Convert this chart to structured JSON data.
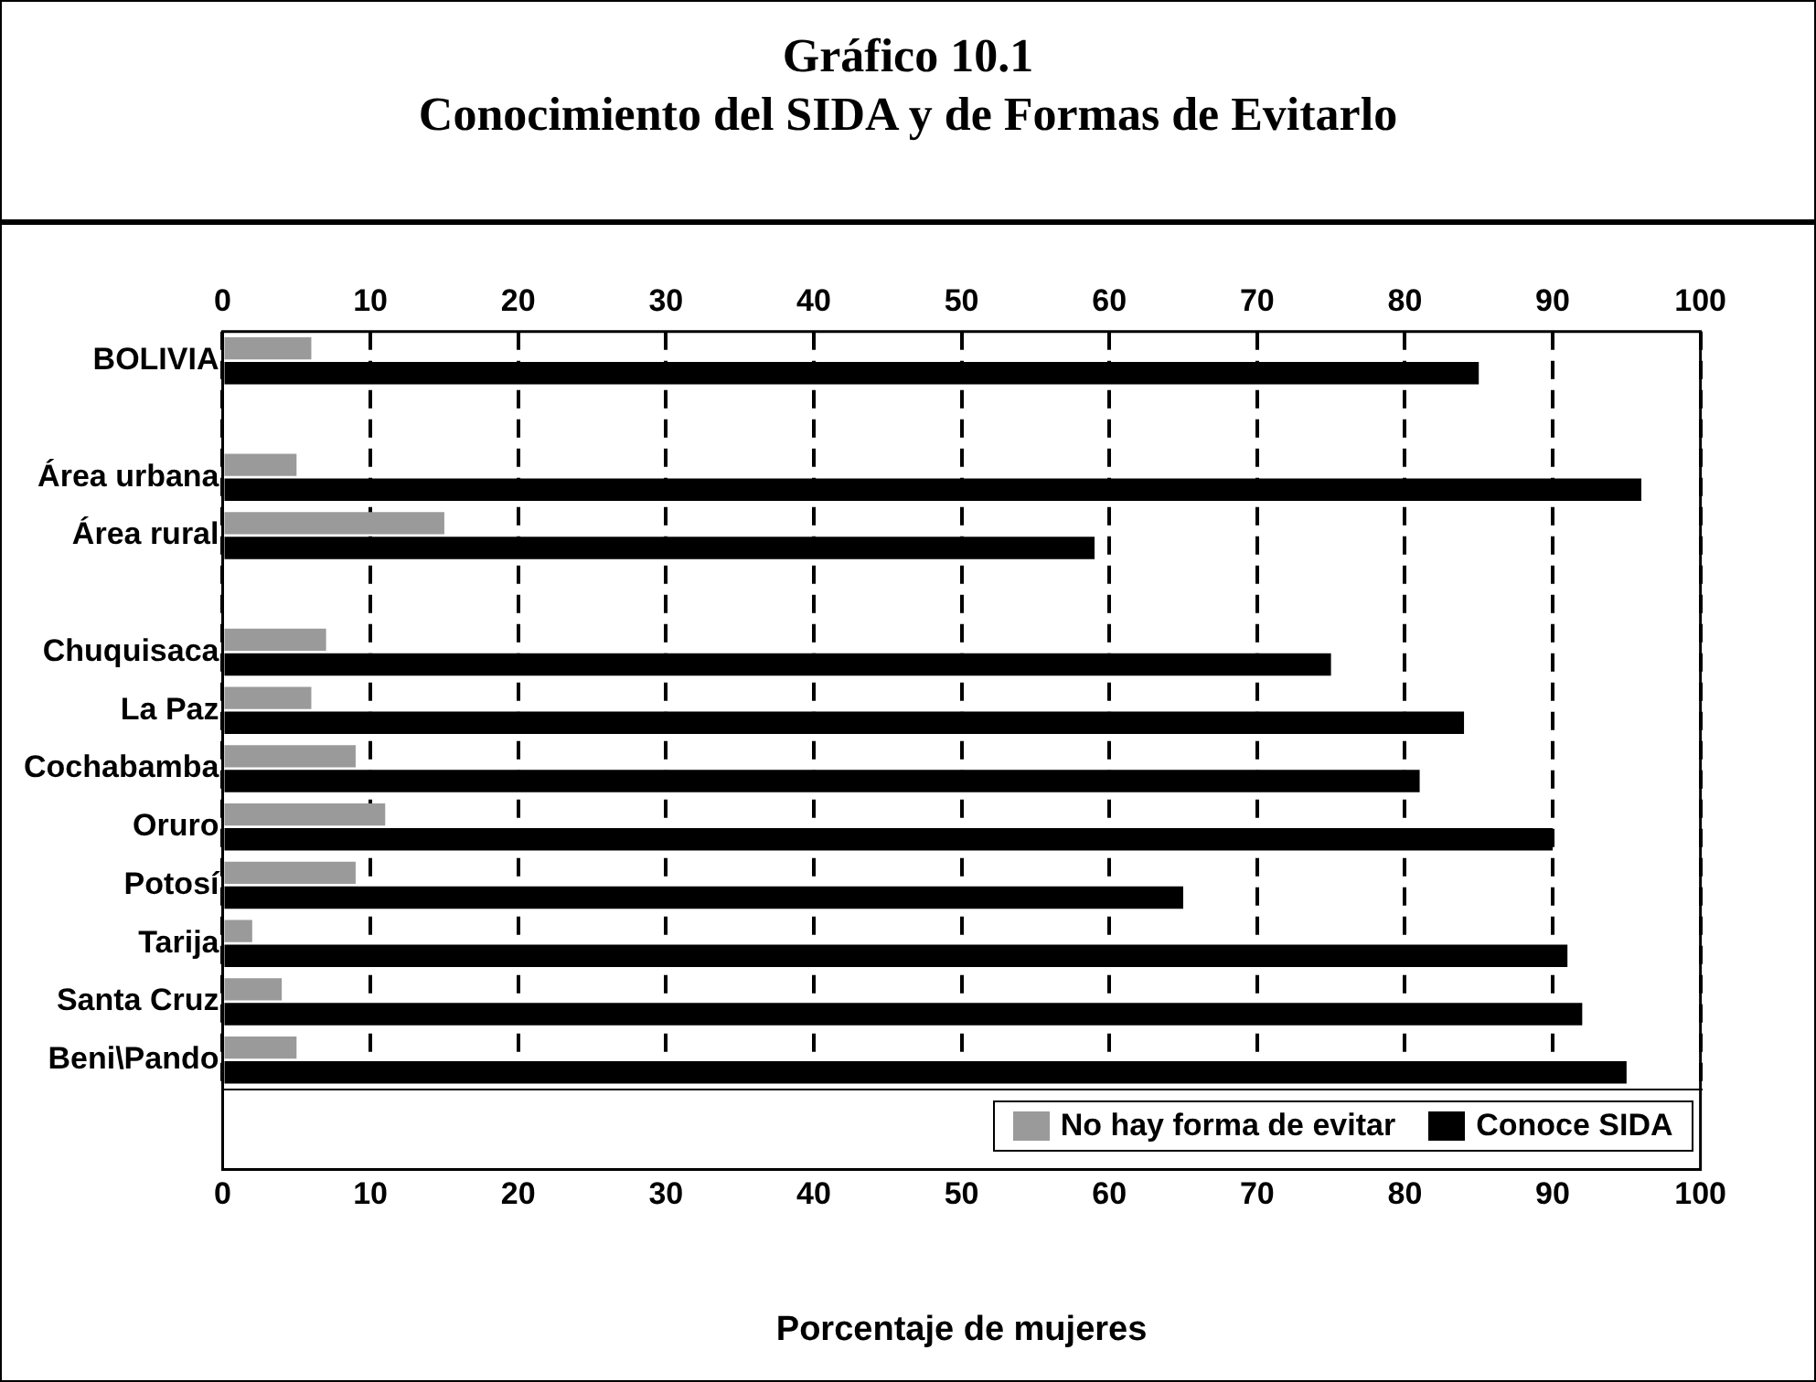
{
  "chart_data": {
    "type": "bar",
    "orientation": "horizontal",
    "title": "Gráfico 10.1",
    "subtitle": "Conocimiento del SIDA y de Formas de Evitarlo",
    "xlabel": "Porcentaje de mujeres",
    "categories": [
      "BOLIVIA",
      null,
      "Área urbana",
      "Área rural",
      null,
      "Chuquisaca",
      "La Paz",
      "Cochabamba",
      "Oruro",
      "Potosí",
      "Tarija",
      "Santa Cruz",
      "Beni\\Pando"
    ],
    "series": [
      {
        "name": "No hay forma de evitar",
        "color": "#9a9a9a",
        "values": [
          6,
          null,
          5,
          15,
          null,
          7,
          6,
          9,
          11,
          9,
          2,
          4,
          5
        ]
      },
      {
        "name": "Conoce SIDA",
        "color": "#000000",
        "values": [
          85,
          null,
          96,
          59,
          null,
          75,
          84,
          81,
          90,
          65,
          91,
          92,
          95
        ]
      }
    ],
    "xlim": [
      0,
      100
    ],
    "xticks": [
      0,
      10,
      20,
      30,
      40,
      50,
      60,
      70,
      80,
      90,
      100
    ],
    "x2lim": [
      0,
      100
    ],
    "x2ticks": [
      0,
      10,
      20,
      30,
      40,
      50,
      60,
      70,
      80,
      90,
      100
    ],
    "grid": "x",
    "legend": "bottom"
  }
}
